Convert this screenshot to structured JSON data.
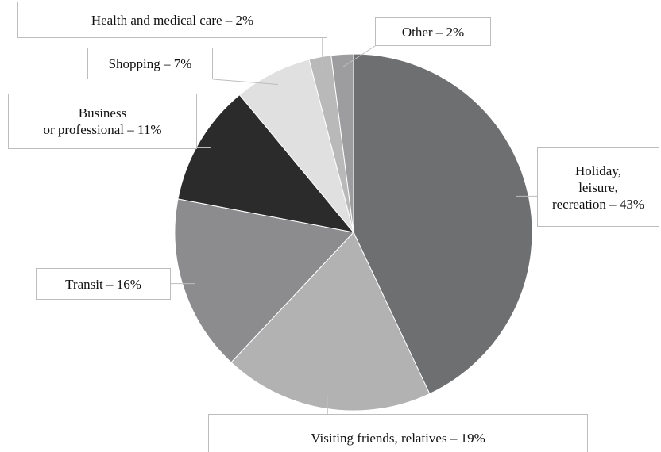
{
  "chart_data": {
    "type": "pie",
    "values": [
      43,
      19,
      16,
      11,
      7,
      2,
      2
    ],
    "value_labels": [
      "Holiday,\nleisure,\nrecreation – 43%",
      "Visiting friends, relatives – 19%",
      "Transit – 16%",
      "Business\nor professional – 11%",
      "Shopping – 7%",
      "Health and medical care – 2%",
      "Other – 2%"
    ],
    "colors": [
      "#6e6f71",
      "#b2b2b2",
      "#8c8c8e",
      "#2c2b2c",
      "#e0e0e0",
      "#b9b9b9",
      "#9d9d9f"
    ]
  }
}
